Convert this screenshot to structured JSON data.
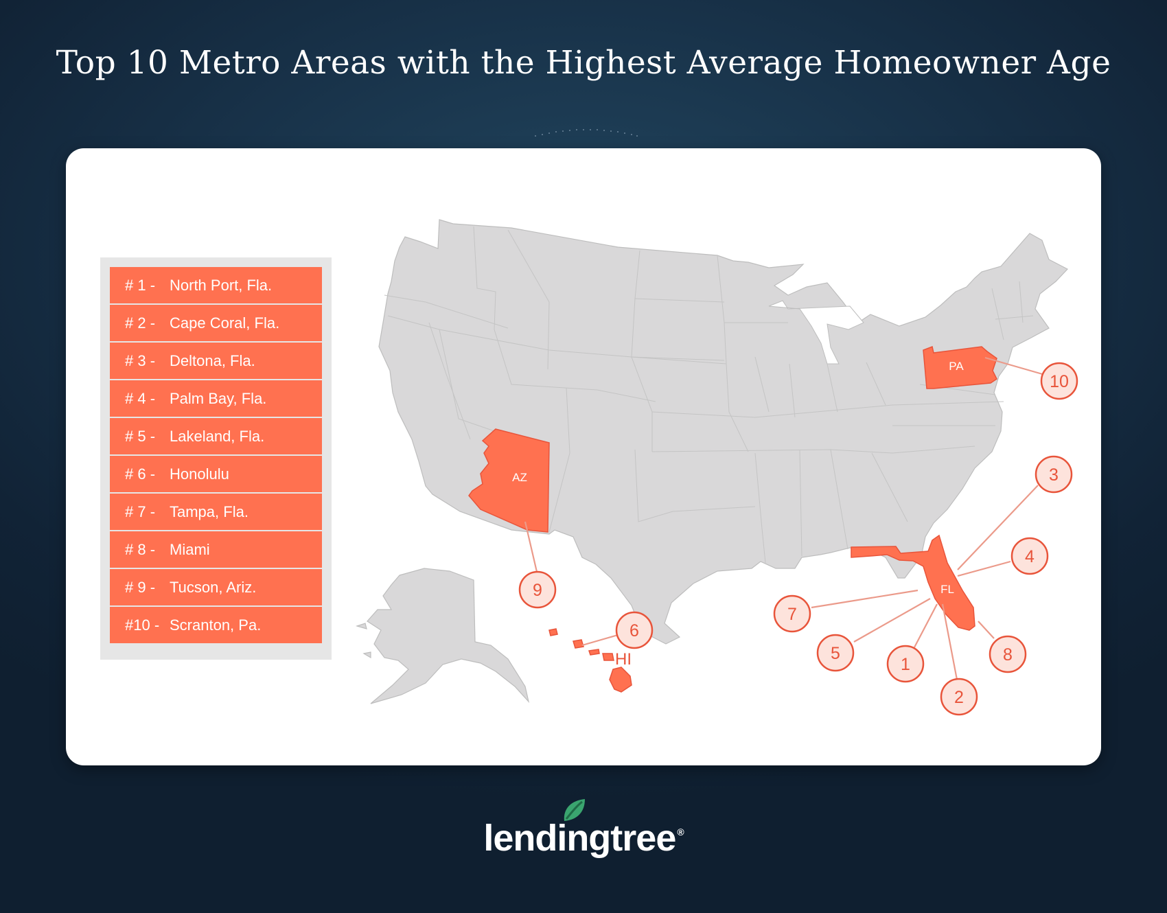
{
  "title": "Top 10 Metro Areas with the Highest Average Homeowner Age",
  "ranking": [
    {
      "rank": "# 1 -",
      "city": "North Port, Fla."
    },
    {
      "rank": "# 2 -",
      "city": "Cape Coral, Fla."
    },
    {
      "rank": "# 3 -",
      "city": "Deltona, Fla."
    },
    {
      "rank": "# 4 -",
      "city": "Palm Bay, Fla."
    },
    {
      "rank": "# 5 -",
      "city": "Lakeland, Fla."
    },
    {
      "rank": "# 6 -",
      "city": "Honolulu"
    },
    {
      "rank": "# 7 -",
      "city": "Tampa, Fla."
    },
    {
      "rank": "# 8 -",
      "city": "Miami"
    },
    {
      "rank": "# 9 -",
      "city": "Tucson, Ariz."
    },
    {
      "rank": "#10 -",
      "city": "Scranton, Pa."
    }
  ],
  "map": {
    "highlight_color": "#ff7150",
    "base_color": "#d9d8d9",
    "state_labels": {
      "az": "AZ",
      "pa": "PA",
      "fl": "FL",
      "hi": "HI"
    },
    "markers": {
      "m1": "1",
      "m2": "2",
      "m3": "3",
      "m4": "4",
      "m5": "5",
      "m6": "6",
      "m7": "7",
      "m8": "8",
      "m9": "9",
      "m10": "10"
    }
  },
  "brand": {
    "name": "lendingtree",
    "trademark": "®",
    "accent_color": "#3aa56f",
    "leaf_icon": "leaf-icon"
  }
}
